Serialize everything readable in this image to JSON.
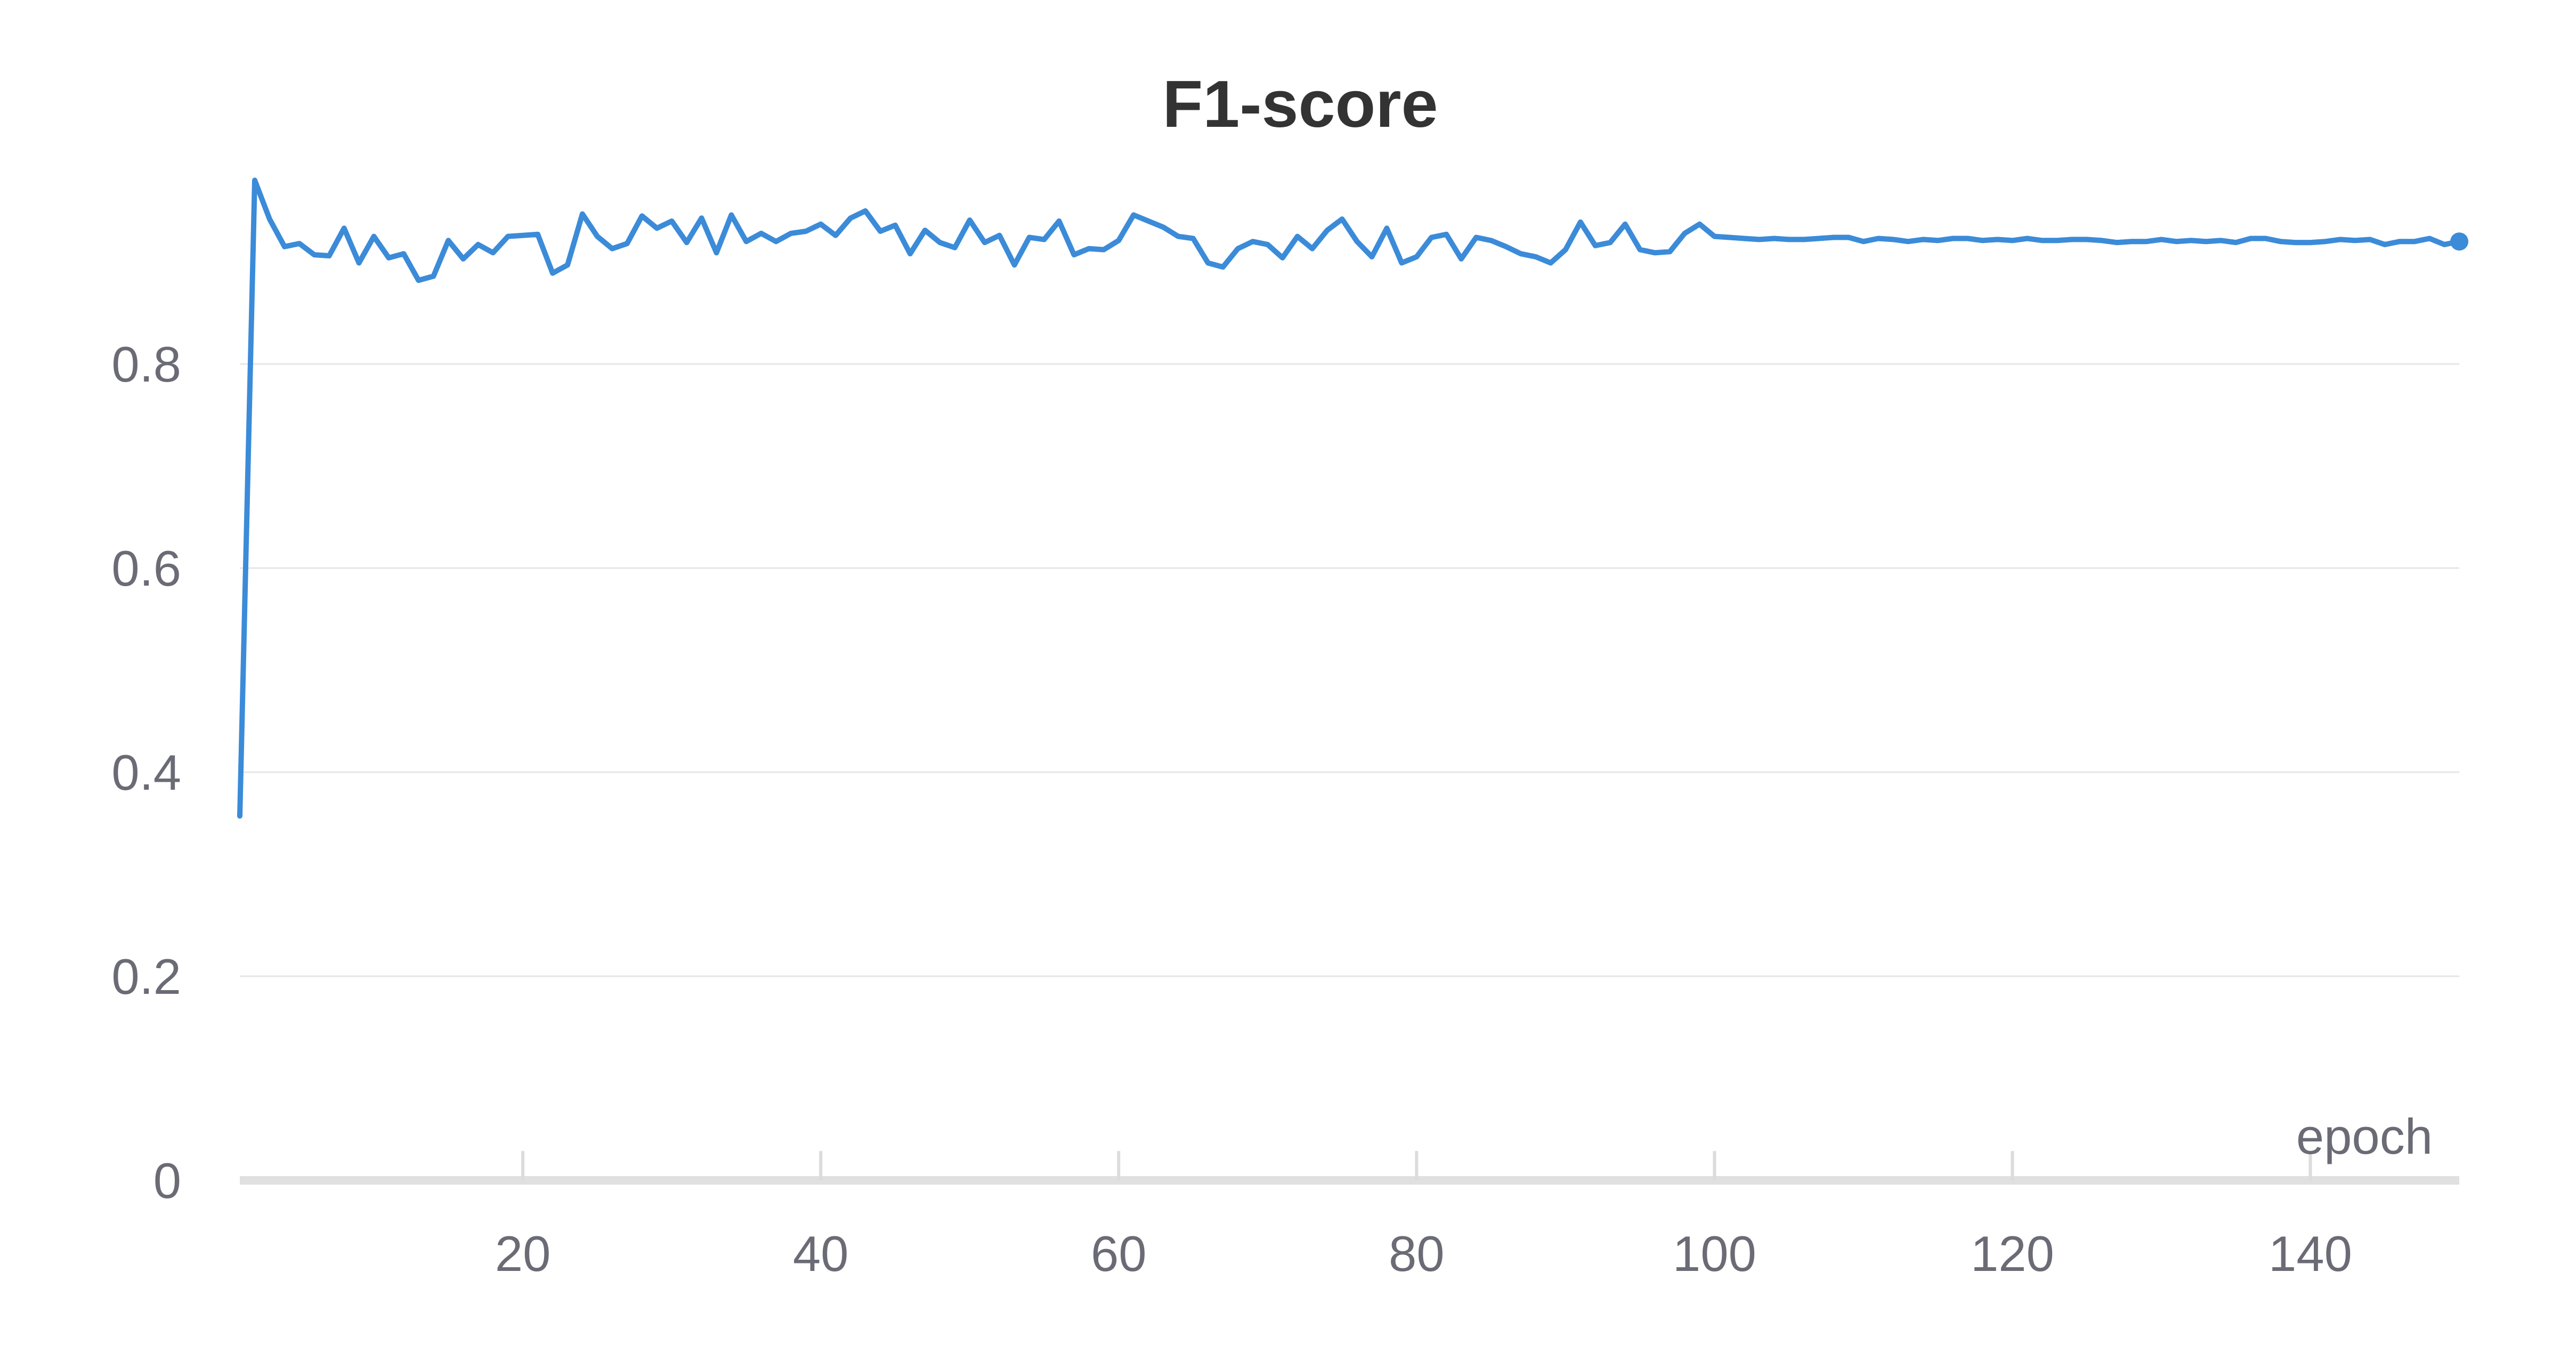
{
  "chart_data": {
    "type": "line",
    "title": "F1-score",
    "xlabel": "epoch",
    "ylabel": "",
    "xlim": [
      1,
      150
    ],
    "ylim": [
      0,
      1
    ],
    "y_ticks": [
      0,
      0.2,
      0.4,
      0.6,
      0.8
    ],
    "y_tick_labels": [
      "0",
      "0.2",
      "0.4",
      "0.6",
      "0.8"
    ],
    "x_ticks": [
      20,
      40,
      60,
      80,
      100,
      120,
      140
    ],
    "x_tick_labels": [
      "20",
      "40",
      "60",
      "80",
      "100",
      "120",
      "140"
    ],
    "grid": true,
    "series": [
      {
        "color": "#3b8bd9",
        "x": [
          1,
          2,
          3,
          4,
          5,
          6,
          7,
          8,
          9,
          10,
          11,
          12,
          13,
          14,
          15,
          16,
          17,
          18,
          19,
          20,
          21,
          22,
          23,
          24,
          25,
          26,
          27,
          28,
          29,
          30,
          31,
          32,
          33,
          34,
          35,
          36,
          37,
          38,
          39,
          40,
          41,
          42,
          43,
          44,
          45,
          46,
          47,
          48,
          49,
          50,
          51,
          52,
          53,
          54,
          55,
          56,
          57,
          58,
          59,
          60,
          61,
          62,
          63,
          64,
          65,
          66,
          67,
          68,
          69,
          70,
          71,
          72,
          73,
          74,
          75,
          76,
          77,
          78,
          79,
          80,
          81,
          82,
          83,
          84,
          85,
          86,
          87,
          88,
          89,
          90,
          91,
          92,
          93,
          94,
          95,
          96,
          97,
          98,
          99,
          100,
          101,
          102,
          103,
          104,
          105,
          106,
          107,
          108,
          109,
          110,
          111,
          112,
          113,
          114,
          115,
          116,
          117,
          118,
          119,
          120,
          121,
          122,
          123,
          124,
          125,
          126,
          127,
          128,
          129,
          130,
          131,
          132,
          133,
          134,
          135,
          136,
          137,
          138,
          139,
          140,
          141,
          142,
          143,
          144,
          145,
          146,
          147,
          148,
          149,
          150
        ],
        "y": [
          0.357,
          0.98,
          0.942,
          0.915,
          0.918,
          0.907,
          0.906,
          0.933,
          0.899,
          0.925,
          0.904,
          0.908,
          0.882,
          0.886,
          0.921,
          0.903,
          0.917,
          0.909,
          0.925,
          0.926,
          0.927,
          0.889,
          0.897,
          0.947,
          0.925,
          0.913,
          0.918,
          0.945,
          0.933,
          0.94,
          0.919,
          0.943,
          0.909,
          0.946,
          0.92,
          0.928,
          0.92,
          0.928,
          0.93,
          0.937,
          0.926,
          0.943,
          0.95,
          0.93,
          0.936,
          0.908,
          0.931,
          0.919,
          0.914,
          0.941,
          0.919,
          0.926,
          0.897,
          0.924,
          0.922,
          0.94,
          0.907,
          0.913,
          0.912,
          0.921,
          0.946,
          0.94,
          0.934,
          0.925,
          0.923,
          0.899,
          0.895,
          0.913,
          0.92,
          0.917,
          0.904,
          0.925,
          0.913,
          0.931,
          0.942,
          0.92,
          0.905,
          0.933,
          0.899,
          0.905,
          0.924,
          0.927,
          0.903,
          0.924,
          0.921,
          0.915,
          0.908,
          0.905,
          0.899,
          0.912,
          0.939,
          0.916,
          0.919,
          0.937,
          0.912,
          0.909,
          0.91,
          0.928,
          0.937,
          0.925,
          0.924,
          0.923,
          0.922,
          0.923,
          0.922,
          0.922,
          0.923,
          0.924,
          0.924,
          0.92,
          0.923,
          0.922,
          0.92,
          0.922,
          0.921,
          0.923,
          0.923,
          0.921,
          0.922,
          0.921,
          0.923,
          0.921,
          0.921,
          0.922,
          0.922,
          0.921,
          0.919,
          0.92,
          0.92,
          0.922,
          0.92,
          0.921,
          0.92,
          0.921,
          0.919,
          0.923,
          0.923,
          0.92,
          0.919,
          0.919,
          0.92,
          0.922,
          0.921,
          0.922,
          0.917,
          0.92,
          0.92,
          0.923,
          0.917,
          0.92
        ]
      }
    ]
  }
}
